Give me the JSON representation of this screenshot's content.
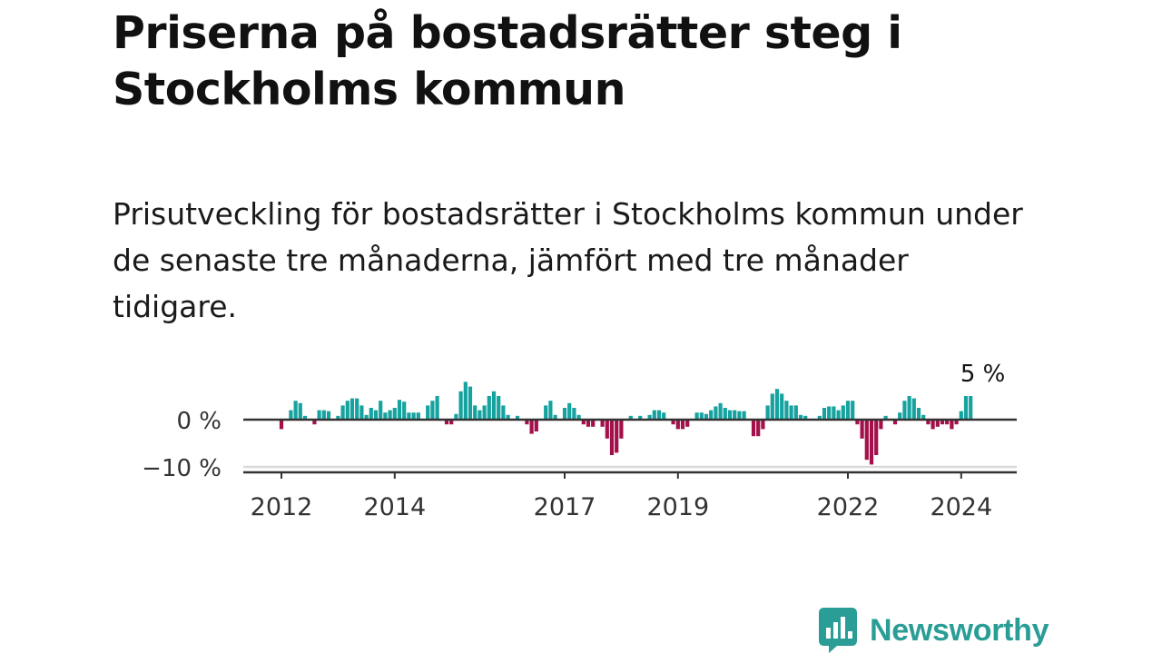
{
  "title": "Priserna på bostadsrätter steg i Stockholms kommun",
  "subtitle": "Prisutveckling för bostadsrätter i Stockholms kommun under de senaste tre månaderna, jämfört med tre månader tidigare.",
  "brand": {
    "name": "Newsworthy",
    "color": "#2a9d96"
  },
  "colors": {
    "positive": "#16a3a0",
    "negative": "#a3104a",
    "axis": "#333333",
    "grid": "#d9d9d9"
  },
  "chart_data": {
    "type": "bar",
    "title": "Prisutveckling för bostadsrätter i Stockholms kommun",
    "xlabel": "",
    "ylabel": "",
    "unit": "%",
    "ylim": [
      -11,
      9
    ],
    "y_ticks": [
      {
        "value": 0,
        "label": "0 %"
      },
      {
        "value": -10,
        "label": "−10 %"
      }
    ],
    "x_tick_labels": [
      {
        "label": "2012",
        "index": 0
      },
      {
        "label": "2014",
        "index": 24
      },
      {
        "label": "2017",
        "index": 60
      },
      {
        "label": "2019",
        "index": 84
      },
      {
        "label": "2022",
        "index": 120
      },
      {
        "label": "2024",
        "index": 144
      }
    ],
    "annotation": {
      "text": "5 %",
      "index": 148,
      "value": 5
    },
    "start": "2012-01",
    "values": [
      -2,
      0,
      2,
      4,
      3.5,
      0.8,
      0,
      -1,
      2,
      2,
      1.8,
      0,
      0.8,
      3,
      4,
      4.5,
      4.5,
      3,
      1,
      2.5,
      2,
      4,
      1.5,
      2,
      2.5,
      4.2,
      3.8,
      1.5,
      1.5,
      1.5,
      0,
      3,
      4,
      5,
      0,
      -1,
      -1,
      1.2,
      6,
      8,
      7,
      3,
      2,
      3,
      5,
      6,
      5,
      3,
      1,
      0,
      0.8,
      0,
      -1,
      -3,
      -2.5,
      0,
      3,
      4,
      1,
      0,
      2.5,
      3.5,
      2.5,
      1,
      -1,
      -1.5,
      -1.5,
      0,
      -1.5,
      -4,
      -7.5,
      -7,
      -4,
      0,
      0.8,
      0,
      0.8,
      0,
      1,
      2,
      2,
      1.5,
      0,
      -1,
      -2,
      -2,
      -1.5,
      0,
      1.5,
      1.5,
      1.2,
      2,
      2.8,
      3.5,
      2.5,
      2,
      2,
      1.8,
      1.8,
      0,
      -3.5,
      -3.5,
      -2,
      3,
      5.5,
      6.5,
      5.5,
      4,
      3,
      3,
      1,
      0.8,
      0,
      0,
      0.8,
      2.5,
      2.8,
      2.8,
      2,
      3,
      4,
      4,
      -1,
      -4,
      -8.5,
      -9.5,
      -7.5,
      -2,
      0.8,
      0,
      -1,
      1.5,
      4,
      5,
      4.5,
      2.5,
      1,
      -1,
      -2,
      -1.5,
      -1,
      -1,
      -2,
      -1,
      1.8,
      5,
      5
    ]
  }
}
